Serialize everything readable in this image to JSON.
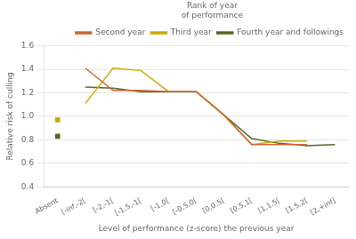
{
  "chart_data": {
    "type": "line",
    "xlabel": "Level of performance (z-score) the previous year",
    "ylabel": "Relative risk of culling",
    "legend_title": "Rank of year\nof performance",
    "categories": [
      "Absent",
      "[-inf,-2[",
      "[-2,-1[",
      "[-1.5,-1[",
      "[-1,0[",
      "[-0.5,0[",
      "[0,0.5[",
      "[0.5,1[",
      "[1,1.5[",
      "[1.5,2[",
      "[2,+inf]"
    ],
    "series": [
      {
        "name": "Second year",
        "color": "#cc6633",
        "marker": "none",
        "line_style": "solid",
        "values": [
          null,
          1.41,
          1.22,
          1.22,
          1.21,
          1.21,
          1.01,
          0.76,
          0.76,
          0.76,
          null
        ]
      },
      {
        "name": "Third year",
        "color": "#ccaa00",
        "marker": "none",
        "line_style": "solid",
        "values": [
          null,
          1.11,
          1.41,
          1.39,
          1.21,
          1.21,
          1.01,
          0.76,
          0.79,
          0.79,
          null
        ]
      },
      {
        "name": "Fourth year and followings",
        "color": "#556622",
        "marker": "none",
        "line_style": "solid",
        "values": [
          null,
          1.25,
          1.24,
          1.21,
          1.21,
          1.21,
          1.01,
          0.81,
          0.77,
          0.75,
          0.76
        ]
      },
      {
        "color": "#ccaa00",
        "marker": "square",
        "line_style": "none",
        "values": [
          0.97,
          null,
          null,
          null,
          null,
          null,
          null,
          null,
          null,
          null,
          null
        ]
      },
      {
        "color": "#556622",
        "marker": "square",
        "line_style": "none",
        "values": [
          0.83,
          null,
          null,
          null,
          null,
          null,
          null,
          null,
          null,
          null,
          null
        ]
      }
    ],
    "ylim": [
      0.4,
      1.6
    ],
    "yticks": [
      0.4,
      0.6,
      0.8,
      {
        "value": 1.0,
        "label": "1.0"
      },
      1.2,
      1.4,
      1.6
    ],
    "grid": "y",
    "legend": "upper right"
  }
}
